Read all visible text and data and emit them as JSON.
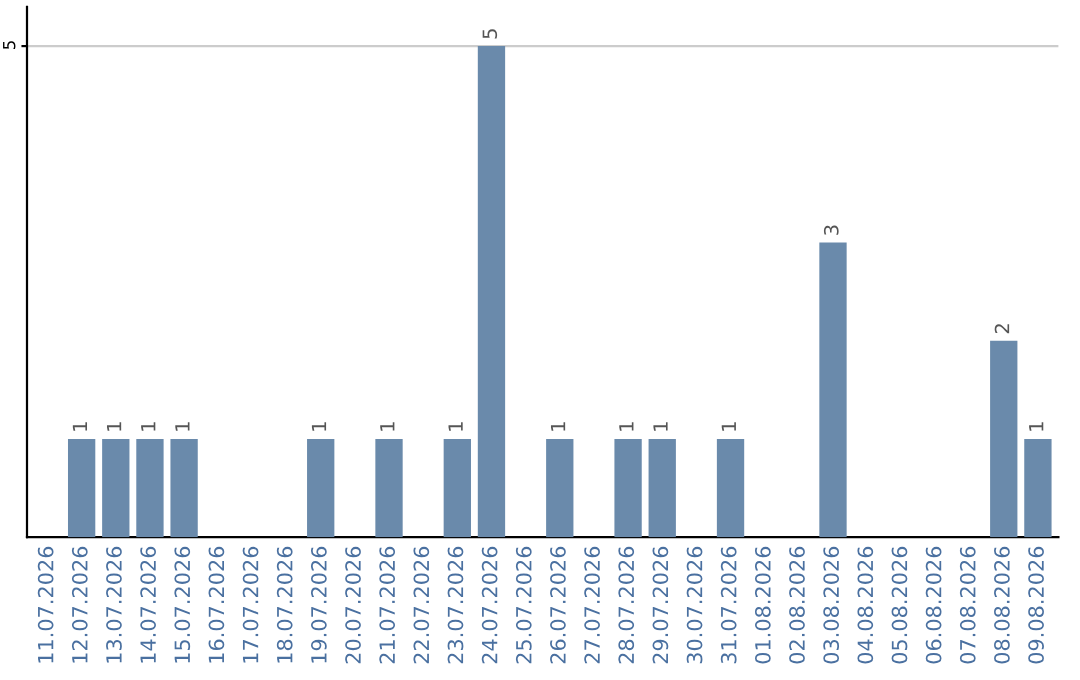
{
  "chart_data": {
    "type": "bar",
    "categories": [
      "11.07.2026",
      "12.07.2026",
      "13.07.2026",
      "14.07.2026",
      "15.07.2026",
      "16.07.2026",
      "17.07.2026",
      "18.07.2026",
      "19.07.2026",
      "20.07.2026",
      "21.07.2026",
      "22.07.2026",
      "23.07.2026",
      "24.07.2026",
      "25.07.2026",
      "26.07.2026",
      "27.07.2026",
      "28.07.2026",
      "29.07.2026",
      "30.07.2026",
      "31.07.2026",
      "01.08.2026",
      "02.08.2026",
      "03.08.2026",
      "04.08.2026",
      "05.08.2026",
      "06.08.2026",
      "07.08.2026",
      "08.08.2026",
      "09.08.2026"
    ],
    "values": [
      0,
      1,
      1,
      1,
      1,
      0,
      0,
      0,
      1,
      0,
      1,
      0,
      1,
      5,
      0,
      1,
      0,
      1,
      1,
      0,
      1,
      0,
      0,
      3,
      0,
      0,
      0,
      0,
      2,
      1
    ],
    "value_labels": [
      null,
      "1",
      "1",
      "1",
      "1",
      null,
      null,
      null,
      "1",
      null,
      "1",
      null,
      "1",
      "5",
      null,
      "1",
      null,
      "1",
      "1",
      null,
      "1",
      null,
      null,
      "3",
      null,
      null,
      null,
      null,
      "2",
      "1"
    ],
    "color": "#6a8aab",
    "ylim": [
      0,
      5.4
    ],
    "yticks": [
      5
    ],
    "grid": "y"
  }
}
